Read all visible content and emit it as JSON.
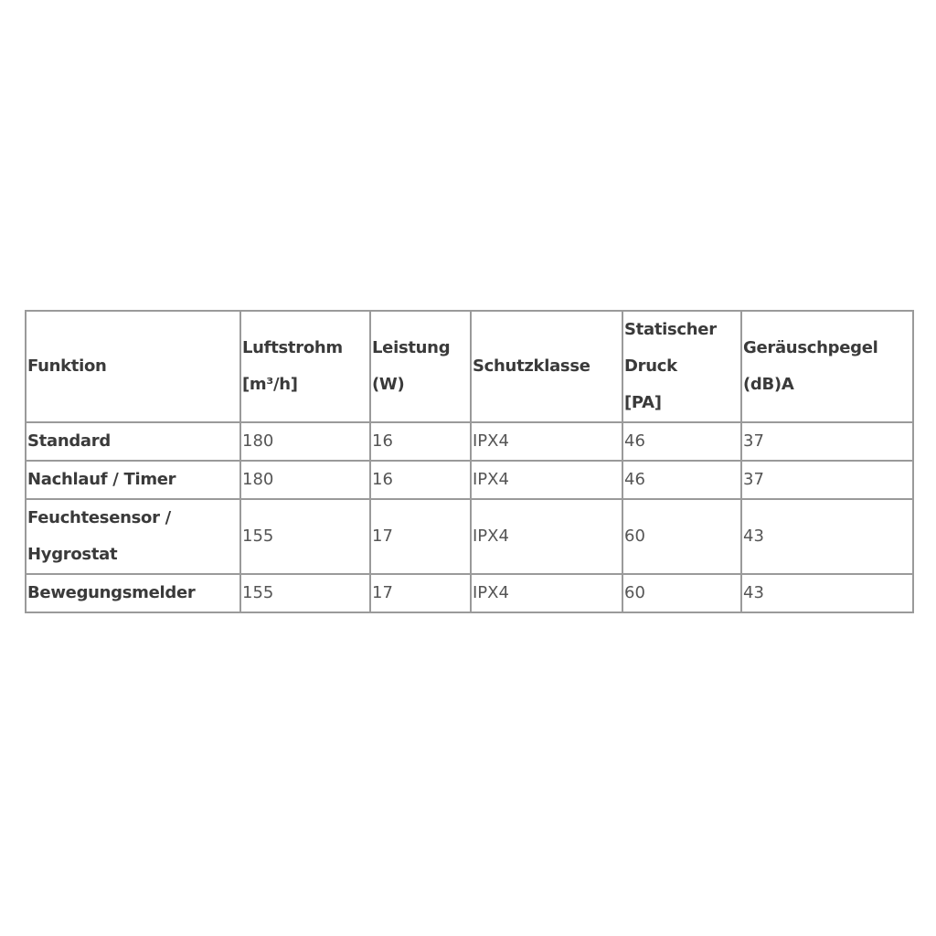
{
  "table": {
    "headers": [
      {
        "lines": [
          "Funktion"
        ]
      },
      {
        "lines": [
          "Luftstrohm",
          "[m³/h]"
        ]
      },
      {
        "lines": [
          "Leistung",
          "(W)"
        ]
      },
      {
        "lines": [
          "Schutzklasse"
        ]
      },
      {
        "lines": [
          "Statischer",
          "Druck",
          "[PA]"
        ]
      },
      {
        "lines": [
          "Geräuschpegel",
          "(dB)A"
        ]
      }
    ],
    "rows": [
      {
        "funktion": [
          "Standard"
        ],
        "luftstrom": "180",
        "leistung": "16",
        "schutzklasse": "IPX4",
        "druck": "46",
        "geraeusch": "37"
      },
      {
        "funktion": [
          "Nachlauf / Timer"
        ],
        "luftstrom": "180",
        "leistung": "16",
        "schutzklasse": "IPX4",
        "druck": "46",
        "geraeusch": "37"
      },
      {
        "funktion": [
          "Feuchtesensor /",
          "Hygrostat"
        ],
        "luftstrom": "155",
        "leistung": "17",
        "schutzklasse": "IPX4",
        "druck": "60",
        "geraeusch": "43"
      },
      {
        "funktion": [
          "Bewegungsmelder"
        ],
        "luftstrom": "155",
        "leistung": "17",
        "schutzklasse": "IPX4",
        "druck": "60",
        "geraeusch": "43"
      }
    ]
  }
}
